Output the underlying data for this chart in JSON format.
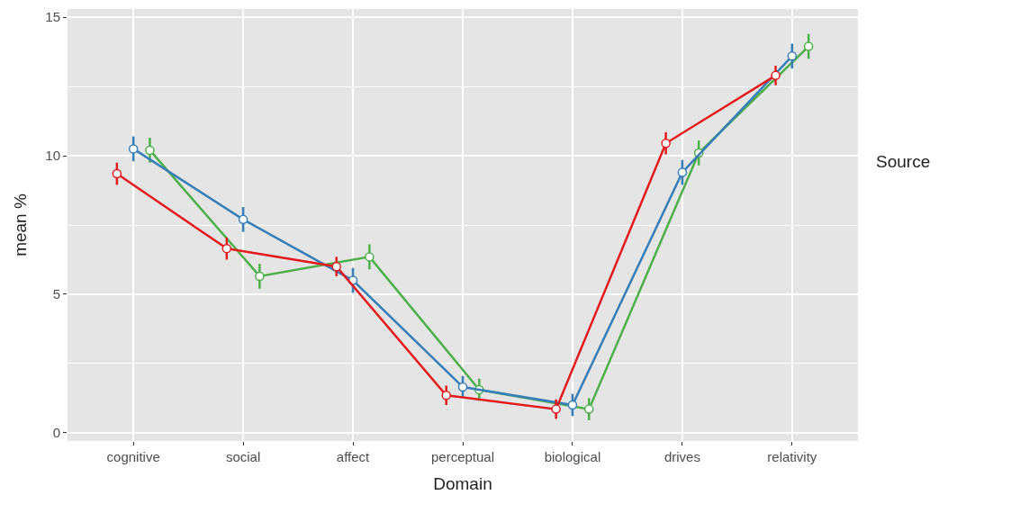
{
  "chart_data": {
    "type": "line",
    "xlabel": "Domain",
    "ylabel": "mean %",
    "legend_title": "Source",
    "categories": [
      "cognitive",
      "social",
      "affect",
      "perceptual",
      "biological",
      "drives",
      "relativity"
    ],
    "series": [
      {
        "color": "#e41a1c",
        "values": [
          9.35,
          6.65,
          6.0,
          1.35,
          0.85,
          10.45,
          12.9
        ],
        "errors": [
          0.4,
          0.4,
          0.35,
          0.35,
          0.35,
          0.4,
          0.35
        ]
      },
      {
        "color": "#377eb8",
        "values": [
          10.25,
          7.7,
          5.5,
          1.65,
          1.0,
          9.4,
          13.6
        ],
        "errors": [
          0.45,
          0.45,
          0.45,
          0.4,
          0.4,
          0.45,
          0.45
        ]
      },
      {
        "color": "#4daf4a",
        "values": [
          10.2,
          5.65,
          6.35,
          1.55,
          0.85,
          10.1,
          13.95
        ],
        "errors": [
          0.45,
          0.45,
          0.45,
          0.4,
          0.4,
          0.45,
          0.45
        ]
      }
    ],
    "ylim": [
      -0.3,
      15.3
    ],
    "yticks": [
      0,
      5,
      10,
      15
    ],
    "grid": true,
    "marker": "circle",
    "line_style": "solid"
  }
}
